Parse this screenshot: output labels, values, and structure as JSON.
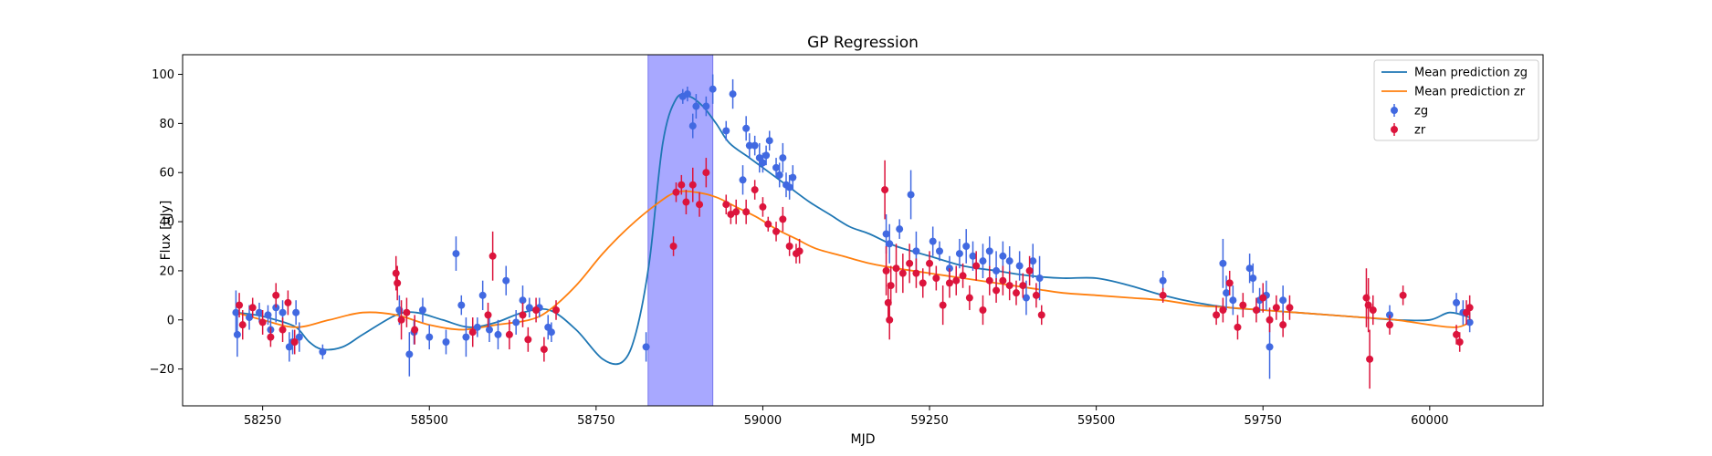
{
  "chart_data": {
    "type": "scatter",
    "title": "GP Regression",
    "xlabel": "MJD",
    "ylabel": "Flux [uJy]",
    "xlim": [
      58130,
      60170
    ],
    "ylim": [
      -35,
      108
    ],
    "xticks": [
      58250,
      58500,
      58750,
      59000,
      59250,
      59500,
      59750,
      60000
    ],
    "yticks": [
      -20,
      0,
      20,
      40,
      60,
      80,
      100
    ],
    "grid": false,
    "legend_position": "top-right",
    "highlight_span": {
      "x_start": 58828,
      "x_end": 58925,
      "color": "#a8a8ff"
    },
    "series": [
      {
        "name": "Mean prediction zg",
        "kind": "line",
        "color": "#1f77b4",
        "x": [
          58210,
          58240,
          58270,
          58300,
          58320,
          58340,
          58370,
          58400,
          58450,
          58480,
          58520,
          58560,
          58600,
          58640,
          58680,
          58720,
          58760,
          58790,
          58810,
          58830,
          58850,
          58870,
          58890,
          58910,
          58930,
          58950,
          58980,
          59010,
          59040,
          59070,
          59100,
          59130,
          59160,
          59200,
          59250,
          59300,
          59350,
          59400,
          59450,
          59500,
          59550,
          59600,
          59650,
          59700,
          59750,
          59800,
          59850,
          59900,
          59950,
          60000,
          60030,
          60060
        ],
        "y": [
          3,
          2,
          0,
          -3,
          -9,
          -12,
          -11,
          -6,
          2,
          3,
          0,
          -3,
          -1,
          3,
          4,
          -4,
          -16,
          -17,
          -5,
          24,
          72,
          90,
          91,
          87,
          80,
          72,
          66,
          60,
          54,
          48,
          43,
          38,
          35,
          30,
          26,
          22,
          20,
          18,
          17,
          17,
          14,
          10,
          7,
          5,
          4,
          3,
          2,
          1,
          0,
          0,
          3,
          1
        ]
      },
      {
        "name": "Mean prediction zr",
        "kind": "line",
        "color": "#ff7f0e",
        "x": [
          58210,
          58250,
          58300,
          58350,
          58400,
          58450,
          58500,
          58550,
          58600,
          58650,
          58680,
          58720,
          58760,
          58800,
          58840,
          58870,
          58900,
          58930,
          58960,
          58990,
          59020,
          59050,
          59080,
          59120,
          59160,
          59200,
          59250,
          59300,
          59350,
          59400,
          59450,
          59500,
          59550,
          59600,
          59650,
          59700,
          59750,
          59800,
          59850,
          59900,
          59950,
          60000,
          60040,
          60060
        ],
        "y": [
          3,
          0,
          -3,
          0,
          3,
          2,
          -2,
          -4,
          -2,
          0,
          4,
          14,
          27,
          38,
          47,
          52,
          52,
          50,
          46,
          42,
          37,
          33,
          29,
          26,
          23,
          21,
          19,
          17,
          15,
          13,
          11,
          10,
          9,
          8,
          6,
          5,
          4,
          3,
          2,
          1,
          0,
          -2,
          -3,
          -1
        ]
      },
      {
        "name": "zg",
        "kind": "errorbar-scatter",
        "color": "#4169e1",
        "points": [
          [
            58210,
            3,
            9
          ],
          [
            58212,
            -6,
            9
          ],
          [
            58230,
            1,
            5
          ],
          [
            58245,
            3,
            4
          ],
          [
            58258,
            2,
            4
          ],
          [
            58262,
            -4,
            5
          ],
          [
            58270,
            5,
            6
          ],
          [
            58280,
            3,
            5
          ],
          [
            58290,
            -11,
            6
          ],
          [
            58295,
            -9,
            5
          ],
          [
            58300,
            3,
            5
          ],
          [
            58305,
            -7,
            6
          ],
          [
            58340,
            -13,
            3
          ],
          [
            58455,
            4,
            6
          ],
          [
            58470,
            -14,
            9
          ],
          [
            58477,
            -5,
            5
          ],
          [
            58490,
            4,
            5
          ],
          [
            58500,
            -7,
            5
          ],
          [
            58525,
            -9,
            5
          ],
          [
            58540,
            27,
            7
          ],
          [
            58548,
            6,
            4
          ],
          [
            58555,
            -7,
            8
          ],
          [
            58572,
            -3,
            4
          ],
          [
            58580,
            10,
            6
          ],
          [
            58590,
            -4,
            5
          ],
          [
            58603,
            -6,
            6
          ],
          [
            58615,
            16,
            6
          ],
          [
            58630,
            -1,
            5
          ],
          [
            58640,
            8,
            6
          ],
          [
            58650,
            5,
            4
          ],
          [
            58665,
            5,
            4
          ],
          [
            58678,
            -3,
            5
          ],
          [
            58683,
            -5,
            4
          ],
          [
            58825,
            -11,
            6
          ],
          [
            58880,
            91,
            3
          ],
          [
            58887,
            92,
            3
          ],
          [
            58895,
            79,
            5
          ],
          [
            58900,
            87,
            5
          ],
          [
            58915,
            87,
            4
          ],
          [
            58925,
            94,
            6
          ],
          [
            58945,
            77,
            4
          ],
          [
            58955,
            92,
            6
          ],
          [
            58970,
            57,
            6
          ],
          [
            58975,
            78,
            5
          ],
          [
            58980,
            71,
            5
          ],
          [
            58988,
            71,
            4
          ],
          [
            58995,
            66,
            6
          ],
          [
            59000,
            64,
            4
          ],
          [
            59005,
            67,
            4
          ],
          [
            59010,
            73,
            4
          ],
          [
            59020,
            62,
            4
          ],
          [
            59025,
            59,
            5
          ],
          [
            59030,
            66,
            6
          ],
          [
            59035,
            55,
            5
          ],
          [
            59040,
            54,
            5
          ],
          [
            59045,
            58,
            5
          ],
          [
            59185,
            35,
            8
          ],
          [
            59190,
            31,
            8
          ],
          [
            59205,
            37,
            4
          ],
          [
            59222,
            51,
            10
          ],
          [
            59230,
            28,
            8
          ],
          [
            59255,
            32,
            6
          ],
          [
            59265,
            28,
            4
          ],
          [
            59280,
            21,
            5
          ],
          [
            59295,
            27,
            6
          ],
          [
            59305,
            30,
            7
          ],
          [
            59315,
            26,
            6
          ],
          [
            59330,
            24,
            7
          ],
          [
            59340,
            28,
            6
          ],
          [
            59350,
            20,
            8
          ],
          [
            59360,
            26,
            6
          ],
          [
            59370,
            24,
            6
          ],
          [
            59385,
            22,
            6
          ],
          [
            59395,
            9,
            7
          ],
          [
            59405,
            24,
            7
          ],
          [
            59415,
            17,
            9
          ],
          [
            59600,
            16,
            4
          ],
          [
            59690,
            23,
            10
          ],
          [
            59695,
            11,
            7
          ],
          [
            59705,
            8,
            6
          ],
          [
            59730,
            21,
            6
          ],
          [
            59735,
            17,
            6
          ],
          [
            59745,
            8,
            5
          ],
          [
            59755,
            10,
            6
          ],
          [
            59760,
            -11,
            13
          ],
          [
            59780,
            8,
            6
          ],
          [
            59940,
            2,
            4
          ],
          [
            60040,
            7,
            4
          ],
          [
            60050,
            3,
            5
          ],
          [
            60060,
            -1,
            4
          ]
        ]
      },
      {
        "name": "zr",
        "kind": "errorbar-scatter",
        "color": "#dc143c",
        "points": [
          [
            58215,
            6,
            5
          ],
          [
            58220,
            -2,
            6
          ],
          [
            58235,
            5,
            4
          ],
          [
            58250,
            -1,
            5
          ],
          [
            58262,
            -7,
            4
          ],
          [
            58270,
            10,
            5
          ],
          [
            58280,
            -4,
            5
          ],
          [
            58288,
            7,
            5
          ],
          [
            58298,
            -9,
            5
          ],
          [
            58450,
            19,
            7
          ],
          [
            58452,
            15,
            7
          ],
          [
            58458,
            0,
            8
          ],
          [
            58466,
            3,
            6
          ],
          [
            58478,
            -4,
            6
          ],
          [
            58565,
            -5,
            6
          ],
          [
            58588,
            2,
            5
          ],
          [
            58595,
            26,
            10
          ],
          [
            58620,
            -6,
            6
          ],
          [
            58640,
            2,
            5
          ],
          [
            58648,
            -8,
            5
          ],
          [
            58660,
            4,
            5
          ],
          [
            58672,
            -12,
            5
          ],
          [
            58690,
            4,
            4
          ],
          [
            58866,
            30,
            4
          ],
          [
            58870,
            52,
            4
          ],
          [
            58878,
            55,
            4
          ],
          [
            58885,
            48,
            5
          ],
          [
            58895,
            55,
            7
          ],
          [
            58905,
            47,
            5
          ],
          [
            58915,
            60,
            6
          ],
          [
            58945,
            47,
            4
          ],
          [
            58952,
            43,
            4
          ],
          [
            58960,
            44,
            5
          ],
          [
            58975,
            44,
            5
          ],
          [
            58988,
            53,
            4
          ],
          [
            59000,
            46,
            4
          ],
          [
            59008,
            39,
            3
          ],
          [
            59020,
            36,
            4
          ],
          [
            59030,
            41,
            5
          ],
          [
            59040,
            30,
            4
          ],
          [
            59050,
            27,
            4
          ],
          [
            59055,
            28,
            5
          ],
          [
            59183,
            53,
            12
          ],
          [
            59185,
            20,
            10
          ],
          [
            59188,
            7,
            8
          ],
          [
            59190,
            0,
            8
          ],
          [
            59192,
            14,
            8
          ],
          [
            59200,
            21,
            10
          ],
          [
            59210,
            19,
            8
          ],
          [
            59220,
            23,
            8
          ],
          [
            59230,
            19,
            6
          ],
          [
            59240,
            15,
            6
          ],
          [
            59250,
            23,
            5
          ],
          [
            59260,
            17,
            5
          ],
          [
            59270,
            6,
            8
          ],
          [
            59280,
            15,
            6
          ],
          [
            59290,
            16,
            6
          ],
          [
            59300,
            18,
            5
          ],
          [
            59310,
            9,
            5
          ],
          [
            59320,
            22,
            6
          ],
          [
            59330,
            4,
            6
          ],
          [
            59340,
            16,
            6
          ],
          [
            59350,
            12,
            5
          ],
          [
            59360,
            16,
            6
          ],
          [
            59370,
            14,
            6
          ],
          [
            59380,
            11,
            5
          ],
          [
            59390,
            14,
            5
          ],
          [
            59400,
            20,
            6
          ],
          [
            59410,
            10,
            5
          ],
          [
            59418,
            2,
            4
          ],
          [
            59600,
            10,
            3
          ],
          [
            59680,
            2,
            4
          ],
          [
            59690,
            4,
            5
          ],
          [
            59700,
            15,
            5
          ],
          [
            59712,
            -3,
            5
          ],
          [
            59720,
            6,
            5
          ],
          [
            59740,
            4,
            5
          ],
          [
            59750,
            9,
            6
          ],
          [
            59760,
            0,
            5
          ],
          [
            59770,
            5,
            5
          ],
          [
            59780,
            -2,
            5
          ],
          [
            59790,
            5,
            5
          ],
          [
            59905,
            9,
            12
          ],
          [
            59908,
            6,
            11
          ],
          [
            59910,
            -16,
            12
          ],
          [
            59915,
            4,
            6
          ],
          [
            59940,
            -2,
            4
          ],
          [
            59960,
            10,
            4
          ],
          [
            60040,
            -6,
            4
          ],
          [
            60045,
            -9,
            4
          ],
          [
            60055,
            3,
            5
          ],
          [
            60060,
            5,
            5
          ]
        ]
      }
    ]
  }
}
